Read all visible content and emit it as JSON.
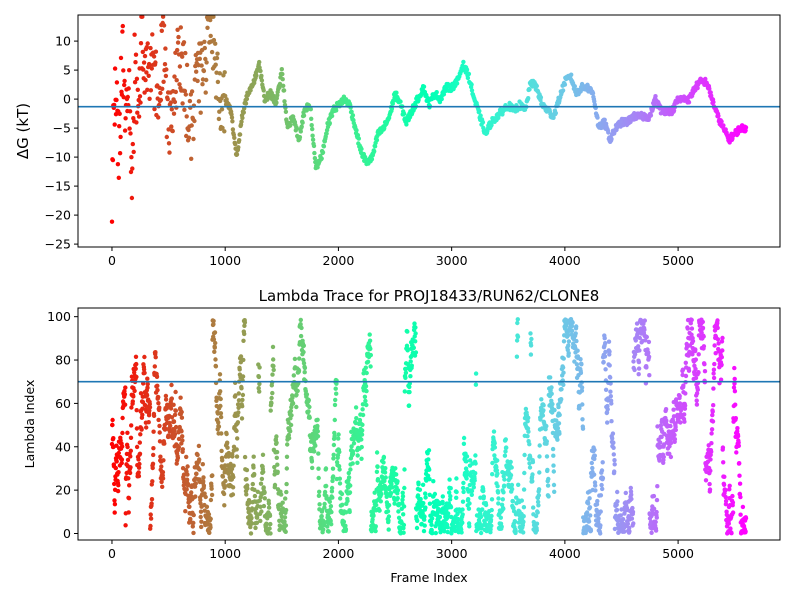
{
  "figure": {
    "background": "#ffffff",
    "colormap": "rainbow",
    "colormap_note_color_start": "#ff0000",
    "colormap_note_color_end": "#8000ff",
    "reference_line_color": "#1f77b4"
  },
  "chart_data": [
    {
      "type": "scatter",
      "title": "",
      "xlabel": "",
      "ylabel": "ΔG (kT)",
      "xlim": [
        -300,
        5900
      ],
      "ylim": [
        -25.5,
        14.5
      ],
      "xticks": [
        0,
        1000,
        2000,
        3000,
        4000,
        5000
      ],
      "xtick_labels": [
        "0",
        "1000",
        "2000",
        "3000",
        "4000",
        "5000"
      ],
      "yticks": [
        10,
        5,
        0,
        -5,
        -10,
        -15,
        -20,
        -25
      ],
      "ytick_labels": [
        "10",
        "5",
        "0",
        "−5",
        "−10",
        "−15",
        "−20",
        "−25"
      ],
      "reference_line_y": -1.3,
      "color_by": "frame index (rainbow, red at start → violet at end)",
      "trace": {
        "x": [
          0,
          30,
          60,
          90,
          120,
          150,
          180,
          200,
          230,
          260,
          300,
          350,
          400,
          450,
          500,
          550,
          600,
          650,
          700,
          750,
          800,
          850,
          900,
          950,
          1000,
          1050,
          1100,
          1150,
          1200,
          1250,
          1300,
          1350,
          1400,
          1450,
          1500,
          1550,
          1600,
          1650,
          1700,
          1750,
          1800,
          1850,
          1900,
          1950,
          2000,
          2050,
          2100,
          2150,
          2200,
          2250,
          2300,
          2350,
          2400,
          2450,
          2500,
          2550,
          2600,
          2650,
          2700,
          2750,
          2800,
          2850,
          2900,
          2950,
          3000,
          3050,
          3100,
          3150,
          3200,
          3250,
          3300,
          3350,
          3400,
          3450,
          3500,
          3550,
          3600,
          3650,
          3700,
          3750,
          3800,
          3850,
          3900,
          3950,
          4000,
          4050,
          4100,
          4150,
          4200,
          4250,
          4300,
          4350,
          4400,
          4450,
          4500,
          4550,
          4600,
          4650,
          4700,
          4750,
          4800,
          4850,
          4900,
          4950,
          5000,
          5050,
          5100,
          5150,
          5200,
          5250,
          5300,
          5350,
          5400,
          5450,
          5500,
          5550,
          5600
        ],
        "y": [
          -15,
          5,
          -10,
          8,
          -3,
          2,
          -18,
          6,
          -5,
          10,
          4,
          7,
          2,
          9,
          -6,
          3,
          8,
          1,
          -4,
          6,
          3,
          10,
          12,
          -1,
          0,
          -2,
          -10,
          -3,
          1,
          3,
          6,
          0,
          1,
          -1,
          5,
          -5,
          -3,
          -7,
          -2,
          -1,
          -12,
          -10,
          -5,
          -2,
          -1,
          0,
          -1,
          -5,
          -9,
          -11,
          -10,
          -6,
          -5,
          -3,
          1,
          -1,
          -4,
          -2,
          0,
          2,
          -1,
          1,
          0,
          2,
          2,
          3,
          6,
          4,
          0,
          -3,
          -6,
          -4,
          -3,
          -2,
          -1,
          -2,
          -1,
          -2,
          3,
          2,
          -1,
          -2,
          -3,
          0,
          3,
          4,
          1,
          2,
          2,
          1,
          -5,
          -4,
          -7,
          -5,
          -4,
          -4,
          -3,
          -3,
          -3,
          -3,
          0,
          -2,
          -2,
          -2,
          0,
          0,
          0,
          2,
          3,
          3,
          0,
          -3,
          -5,
          -7,
          -6,
          -5,
          -5
        ]
      }
    },
    {
      "type": "scatter",
      "title": "Lambda Trace for PROJ18433/RUN62/CLONE8",
      "xlabel": "Frame Index",
      "ylabel": "Lambda Index",
      "xlim": [
        -300,
        5900
      ],
      "ylim": [
        -3,
        104
      ],
      "xticks": [
        0,
        1000,
        2000,
        3000,
        4000,
        5000
      ],
      "xtick_labels": [
        "0",
        "1000",
        "2000",
        "3000",
        "4000",
        "5000"
      ],
      "yticks": [
        0,
        20,
        40,
        60,
        80,
        100
      ],
      "ytick_labels": [
        "0",
        "20",
        "40",
        "60",
        "80",
        "100"
      ],
      "reference_line_y": 70,
      "color_by": "frame index (rainbow, red at start → violet at end)",
      "frame_range": [
        0,
        5600
      ],
      "lambda_range": [
        0,
        99
      ]
    }
  ]
}
